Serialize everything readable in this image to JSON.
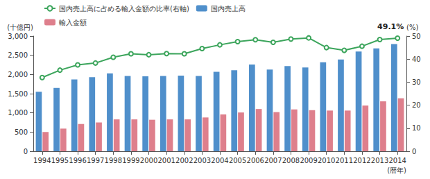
{
  "chart_data": {
    "type": "bar",
    "categories": [
      "1994",
      "1995",
      "1996",
      "1997",
      "1998",
      "1999",
      "2000",
      "2001",
      "2002",
      "2003",
      "2004",
      "2005",
      "2006",
      "2007",
      "2008",
      "2009",
      "2010",
      "2011",
      "2012",
      "2013",
      "2014"
    ],
    "xlabel": "(暦年)",
    "ylabel": "(十億円)",
    "y2label": "(%)",
    "ylim": [
      0,
      3000
    ],
    "yticks": [
      0,
      500,
      {
        "value": 1000,
        "label": "1,000"
      },
      {
        "value": 1500,
        "label": "1,500"
      },
      {
        "value": 2000,
        "label": "2,000"
      },
      {
        "value": 2500,
        "label": "2,500"
      },
      {
        "value": 3000,
        "label": "3,000"
      }
    ],
    "y2lim": [
      0,
      50
    ],
    "y2ticks": [
      0,
      10,
      20,
      30,
      40,
      50
    ],
    "grid": false,
    "legend": "upper left",
    "series": [
      {
        "name": "国内売上高に占める輸入金額の比率(右軸)",
        "type": "line",
        "axis": "y2",
        "color": "#3ca55c",
        "marker": "open_circle",
        "values": [
          32.0,
          35.2,
          37.5,
          38.3,
          40.8,
          42.3,
          41.9,
          42.4,
          42.3,
          44.6,
          46.2,
          47.6,
          48.4,
          47.3,
          48.7,
          49.2,
          45.0,
          43.8,
          45.6,
          48.5,
          49.1
        ],
        "value_labels": [
          null,
          null,
          null,
          null,
          null,
          null,
          null,
          null,
          null,
          null,
          null,
          null,
          null,
          null,
          null,
          null,
          null,
          null,
          null,
          null,
          "49.1%"
        ]
      },
      {
        "name": "国内売上高",
        "type": "bar",
        "color": "#4f8fcb",
        "values": [
          1550,
          1650,
          1870,
          1930,
          2030,
          1960,
          1950,
          1960,
          1970,
          1960,
          2070,
          2110,
          2260,
          2130,
          2220,
          2180,
          2320,
          2390,
          2600,
          2680,
          2790
        ]
      },
      {
        "name": "輸入金額",
        "type": "bar",
        "color": "#de7f8c",
        "values": [
          500,
          590,
          710,
          750,
          830,
          830,
          820,
          830,
          830,
          880,
          960,
          1010,
          1100,
          1020,
          1090,
          1070,
          1060,
          1060,
          1190,
          1300,
          1380
        ]
      }
    ]
  }
}
